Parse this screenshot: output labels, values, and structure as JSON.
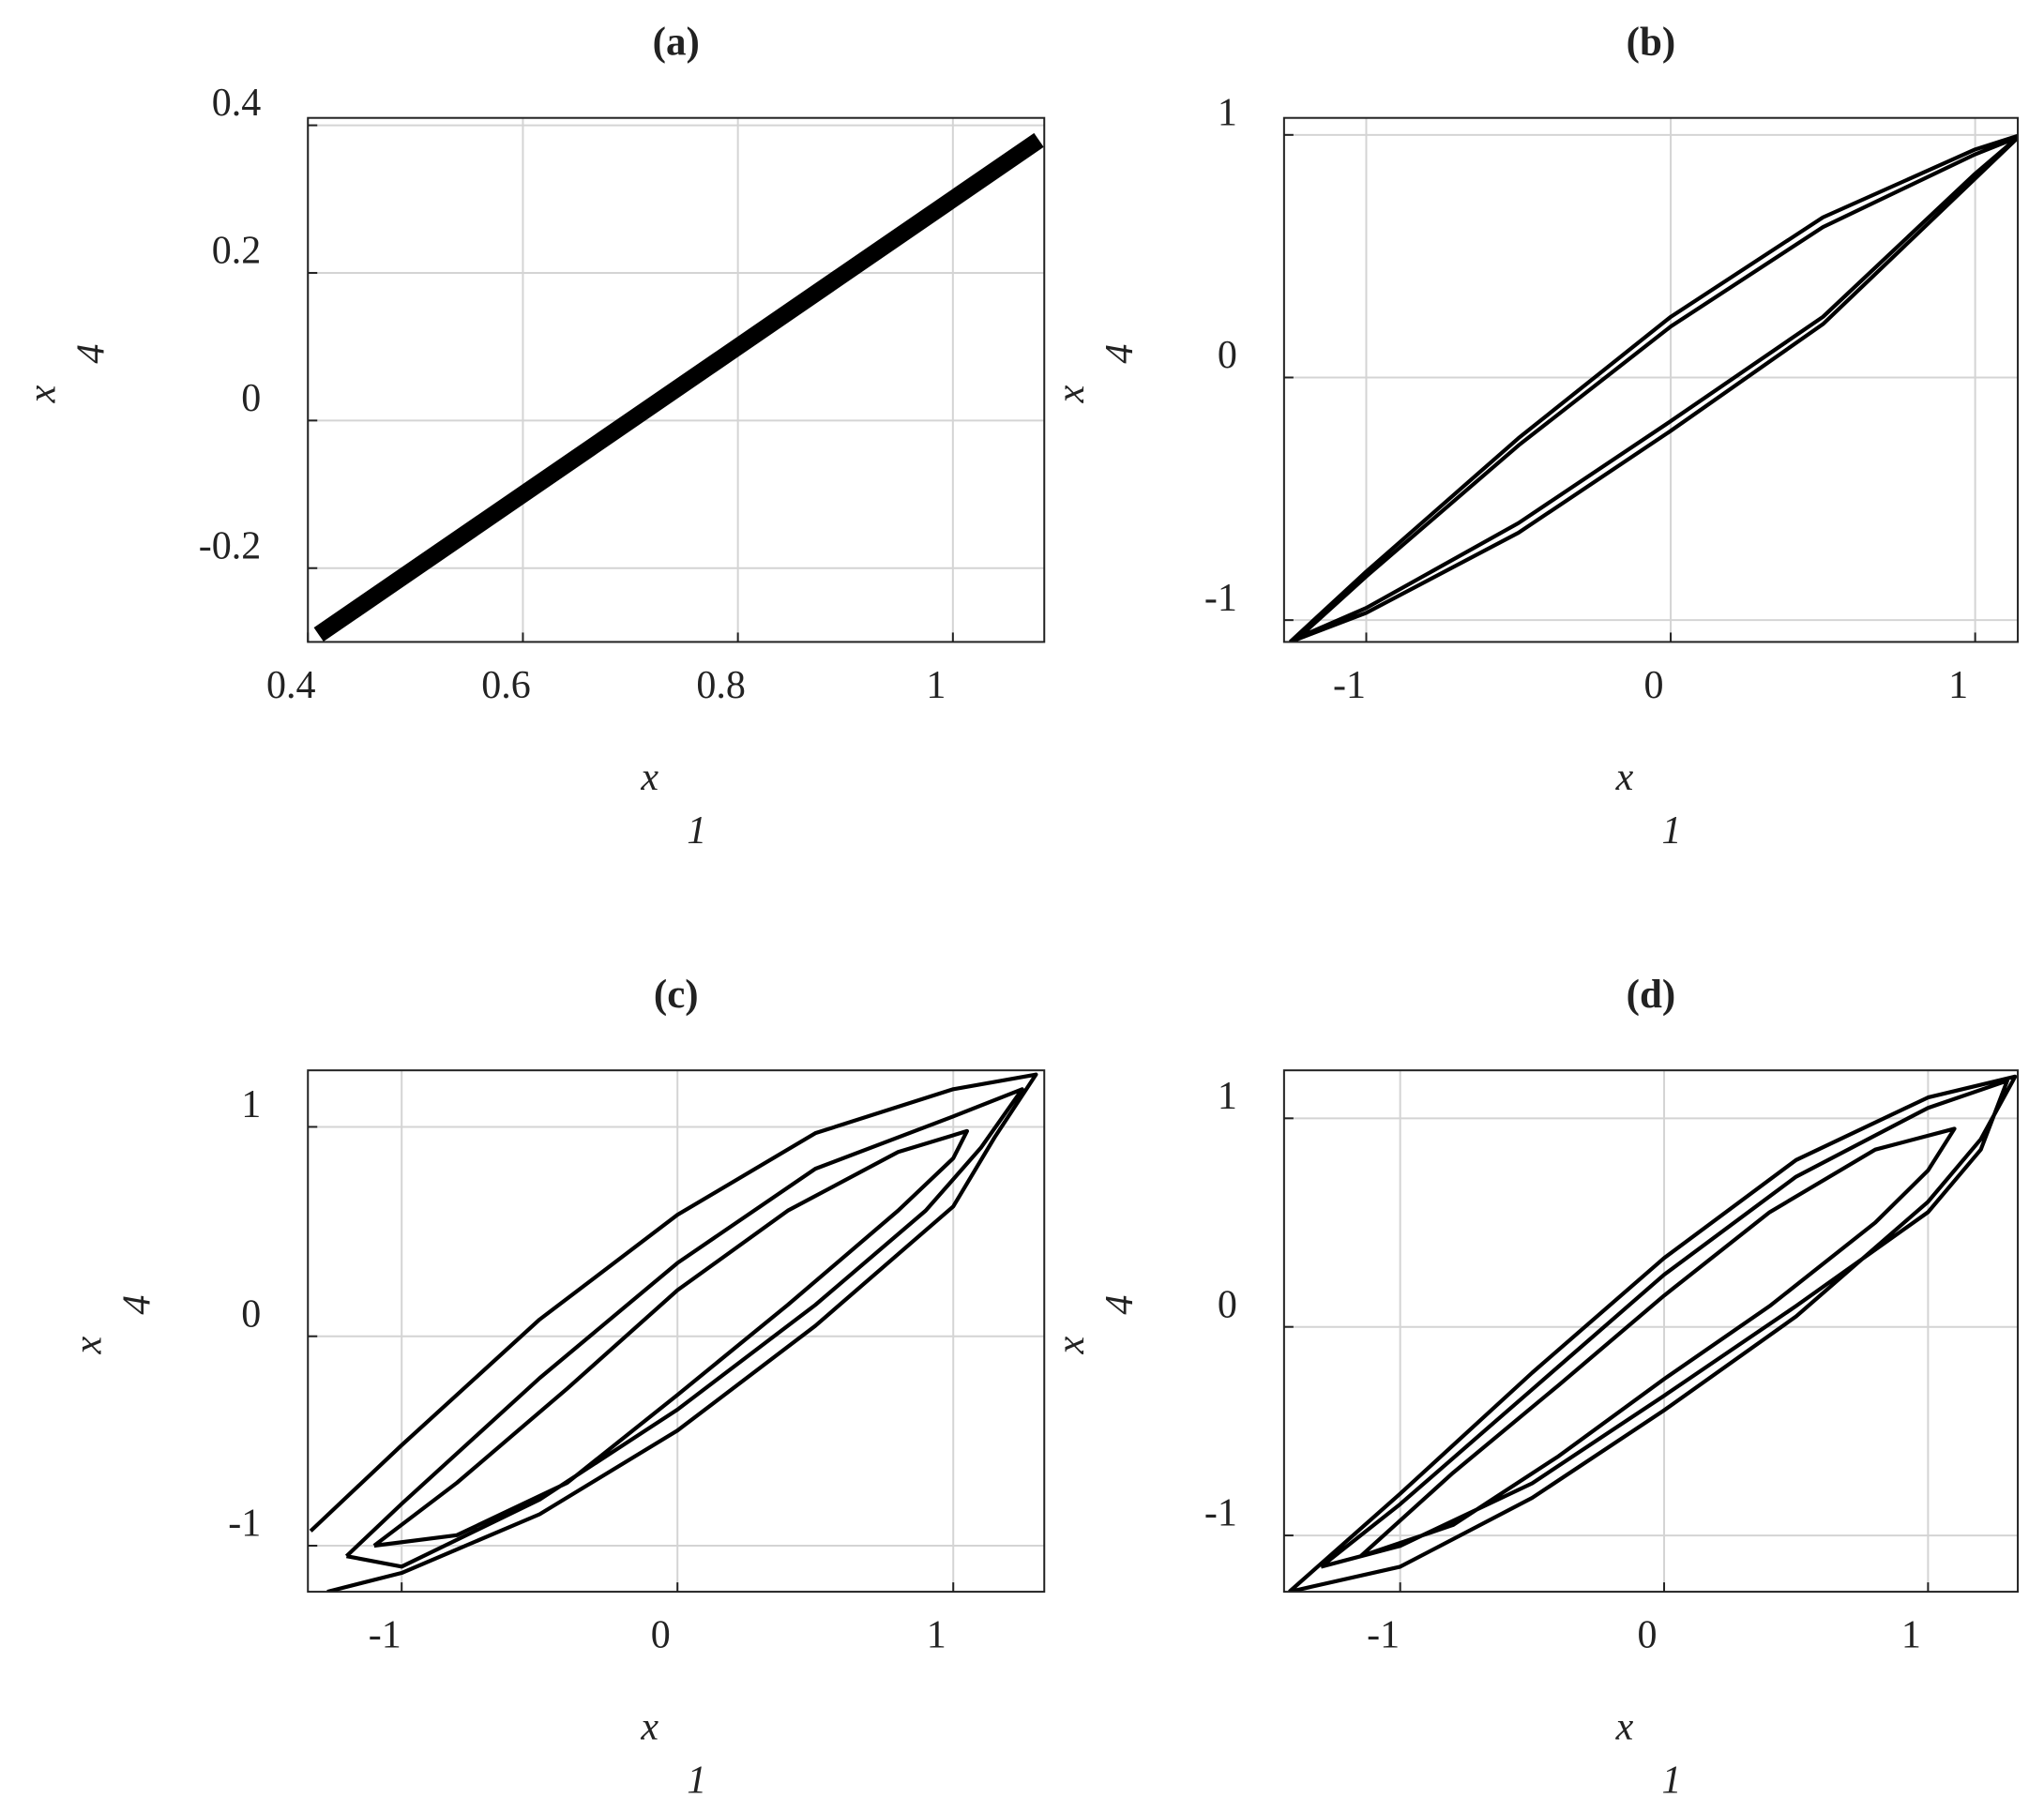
{
  "chart_data": [
    {
      "type": "line",
      "title": "(a)",
      "xlabel": "x",
      "xlabel_sub": "1",
      "ylabel": "x",
      "ylabel_sub": "4",
      "color": "#000000",
      "line_width": 13,
      "grid": true,
      "x": [
        0.41,
        1.08
      ],
      "values": [
        -0.29,
        0.38
      ],
      "xlim": [
        0.4,
        1.085
      ],
      "xticks": [
        0.4,
        0.6,
        0.8,
        1
      ],
      "ylim": [
        -0.3,
        0.41
      ],
      "yticks": [
        -0.2,
        0,
        0.2,
        0.4
      ]
    },
    {
      "type": "line",
      "title": "(b)",
      "xlabel": "x",
      "xlabel_sub": "1",
      "ylabel": "x",
      "ylabel_sub": "4",
      "color": "#000000",
      "line_width": 3,
      "grid": true,
      "x": [
        -1.25,
        -1.0,
        -0.5,
        0,
        0.5,
        1.0,
        1.15,
        1.0,
        0.5,
        0,
        -0.5,
        -1.0,
        -1.25,
        null,
        -1.22,
        -1.0,
        -0.5,
        0,
        0.5,
        1.0,
        1.14,
        1.0,
        0.5,
        0,
        -0.5,
        -1.0,
        -1.22
      ],
      "values": [
        -1.09,
        -0.8,
        -0.25,
        0.25,
        0.66,
        0.94,
        1.0,
        0.82,
        0.22,
        -0.22,
        -0.64,
        -0.97,
        -1.09,
        null,
        -1.07,
        -0.82,
        -0.28,
        0.21,
        0.62,
        0.92,
        0.99,
        0.84,
        0.25,
        -0.18,
        -0.6,
        -0.95,
        -1.07
      ],
      "xlim": [
        -1.27,
        1.14
      ],
      "xticks": [
        -1,
        0,
        1
      ],
      "ylim": [
        -1.09,
        1.07
      ],
      "yticks": [
        -1,
        0,
        1
      ]
    },
    {
      "type": "line",
      "title": "(c)",
      "xlabel": "x",
      "xlabel_sub": "1",
      "ylabel": "x",
      "ylabel_sub": "4",
      "color": "#000000",
      "line_width": 3,
      "grid": true,
      "x": [
        -1.33,
        -1.0,
        -0.5,
        0,
        0.5,
        1.0,
        1.3,
        1.15,
        1.0,
        0.5,
        0,
        -0.5,
        -1.0,
        -1.27,
        null,
        -1.2,
        -1.0,
        -0.5,
        0,
        0.5,
        1.0,
        1.25,
        1.1,
        0.9,
        0.5,
        0,
        -0.5,
        -1.0,
        -1.2,
        null,
        -1.1,
        -0.8,
        -0.4,
        0,
        0.4,
        0.8,
        1.05,
        1.0,
        0.8,
        0.4,
        0,
        -0.4,
        -0.8,
        -1.1
      ],
      "values": [
        -0.93,
        -0.52,
        0.08,
        0.58,
        0.97,
        1.18,
        1.25,
        0.95,
        0.62,
        0.05,
        -0.45,
        -0.85,
        -1.13,
        -1.22,
        null,
        -1.05,
        -0.8,
        -0.2,
        0.35,
        0.8,
        1.05,
        1.18,
        0.9,
        0.6,
        0.15,
        -0.35,
        -0.78,
        -1.1,
        -1.05,
        null,
        -1.0,
        -0.7,
        -0.25,
        0.22,
        0.6,
        0.88,
        0.98,
        0.85,
        0.6,
        0.15,
        -0.28,
        -0.7,
        -0.95,
        -1.0
      ],
      "xlim": [
        -1.34,
        1.33
      ],
      "xticks": [
        -1,
        0,
        1
      ],
      "ylim": [
        -1.22,
        1.27
      ],
      "yticks": [
        -1,
        0,
        1
      ]
    },
    {
      "type": "line",
      "title": "(d)",
      "xlabel": "x",
      "xlabel_sub": "1",
      "ylabel": "x",
      "ylabel_sub": "4",
      "color": "#000000",
      "line_width": 3,
      "grid": true,
      "x": [
        -1.42,
        -1.0,
        -0.5,
        0,
        0.5,
        1.0,
        1.33,
        1.2,
        1.0,
        0.5,
        0,
        -0.5,
        -1.0,
        -1.42,
        null,
        -1.3,
        -1.0,
        -0.5,
        0,
        0.5,
        1.0,
        1.3,
        1.2,
        1.0,
        0.5,
        0,
        -0.5,
        -1.0,
        -1.3,
        null,
        -1.15,
        -0.8,
        -0.4,
        0,
        0.4,
        0.8,
        1.1,
        1.0,
        0.8,
        0.4,
        0,
        -0.4,
        -0.8,
        -1.15
      ],
      "values": [
        -1.27,
        -0.8,
        -0.22,
        0.33,
        0.8,
        1.1,
        1.2,
        0.9,
        0.6,
        0.05,
        -0.4,
        -0.82,
        -1.15,
        -1.27,
        null,
        -1.15,
        -0.85,
        -0.3,
        0.25,
        0.72,
        1.05,
        1.18,
        0.85,
        0.55,
        0.1,
        -0.33,
        -0.75,
        -1.05,
        -1.15,
        null,
        -1.1,
        -0.7,
        -0.28,
        0.15,
        0.55,
        0.85,
        0.95,
        0.75,
        0.5,
        0.1,
        -0.25,
        -0.62,
        -0.95,
        -1.1
      ],
      "xlim": [
        -1.44,
        1.34
      ],
      "xticks": [
        -1,
        0,
        1
      ],
      "ylim": [
        -1.27,
        1.23
      ],
      "yticks": [
        -1,
        0,
        1
      ]
    }
  ]
}
